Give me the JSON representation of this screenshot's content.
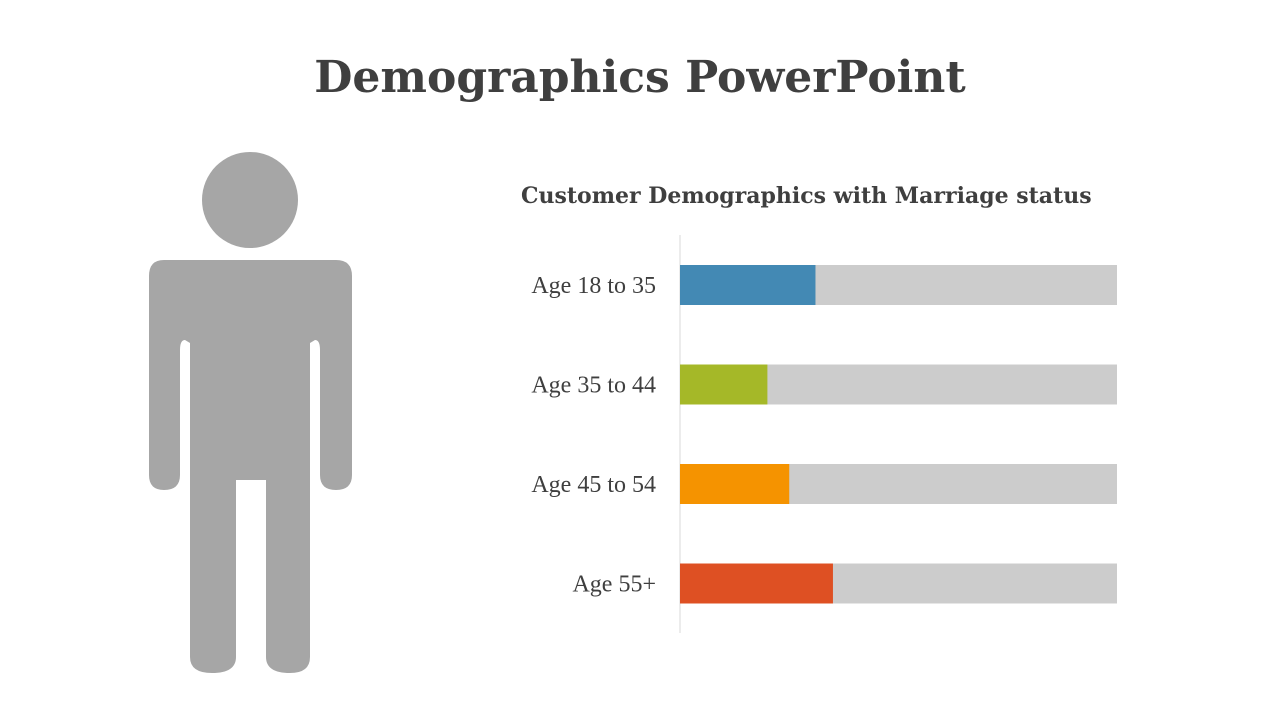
{
  "slide": {
    "title": "Demographics PowerPoint"
  },
  "colors": {
    "title_text": "#3f3f3f",
    "person_fill": "#a6a6a6",
    "track": "#cccccc",
    "axis": "#d9d9d9"
  },
  "chart_data": {
    "type": "bar",
    "orientation": "horizontal",
    "title": "Customer Demographics with Marriage status",
    "categories": [
      "Age 18 to 35",
      "Age 35 to 44",
      "Age 45 to 54",
      "Age 55+"
    ],
    "values": [
      31,
      20,
      25,
      35
    ],
    "track_max": 100,
    "colors": [
      "#4389b4",
      "#a5b828",
      "#f59300",
      "#de5023"
    ],
    "xlabel": "",
    "ylabel": "",
    "grid": false,
    "legend": "none"
  }
}
